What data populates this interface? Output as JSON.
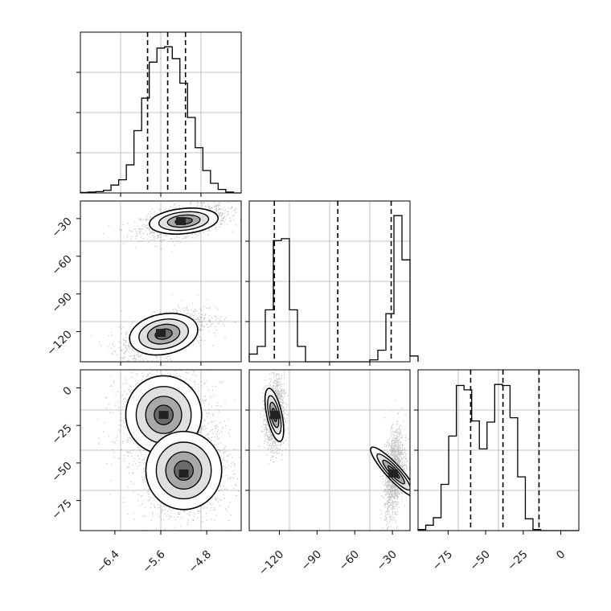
{
  "chart_data": {
    "type": "corner",
    "panels": [
      {
        "id": "hist-p1",
        "kind": "histogram",
        "row": 0,
        "col": 0,
        "xlim": [
          -7.0,
          -4.2
        ],
        "quantiles": [
          -5.83,
          -5.48,
          -5.17
        ],
        "bin_edges_start": -7.0,
        "bin_width": 0.1333,
        "counts": [
          0.2,
          0.4,
          0.6,
          1.2,
          3.6,
          6.0,
          12.8,
          28.4,
          43.2,
          59.6,
          66.0,
          66.6,
          61.2,
          50.0,
          34.4,
          20.6,
          10.2,
          4.4,
          1.6,
          0.4,
          0
        ]
      },
      {
        "id": "scatter-p1-p2",
        "kind": "density2d",
        "row": 1,
        "col": 0,
        "xlim": [
          -7.0,
          -4.2
        ],
        "ylim": [
          -144,
          -16
        ],
        "yticks": [
          -30,
          -60,
          -90,
          -120
        ],
        "modes": [
          {
            "cx": -5.2,
            "cy": -32,
            "sx": 0.3,
            "sy": 5,
            "corr": 0.45,
            "n": 1400,
            "dark": [
              -5.25,
              -32
            ]
          },
          {
            "cx": -5.55,
            "cy": -122,
            "sx": 0.3,
            "sy": 8,
            "corr": 0.55,
            "n": 1400,
            "dark": [
              -5.6,
              -121
            ]
          }
        ]
      },
      {
        "id": "hist-p2",
        "kind": "histogram",
        "row": 1,
        "col": 1,
        "xlim": [
          -144,
          -16
        ],
        "quantiles": [
          -124,
          -73.5,
          -31
        ],
        "bin_edges_start": -144,
        "bin_width": 6.4,
        "counts": [
          0.4,
          0.8,
          2.7,
          6.3,
          6.4,
          2.7,
          0.8,
          0,
          0,
          0,
          0,
          0,
          0,
          0,
          0,
          0.1,
          0.6,
          2.5,
          7.6,
          5.3,
          0.3
        ]
      },
      {
        "id": "scatter-p1-p3",
        "kind": "density2d",
        "row": 2,
        "col": 0,
        "xlim": [
          -7.0,
          -4.2
        ],
        "ylim": [
          -95,
          12
        ],
        "yticks": [
          0,
          -25,
          -50,
          -75
        ],
        "xticks": [
          -6.4,
          -5.6,
          -4.8
        ],
        "modes": [
          {
            "cx": -5.55,
            "cy": -18,
            "sx": 0.33,
            "sy": 13,
            "corr": 0.0,
            "n": 1400,
            "dark": [
              -5.55,
              -18
            ]
          },
          {
            "cx": -5.2,
            "cy": -55,
            "sx": 0.33,
            "sy": 13,
            "corr": 0.0,
            "n": 1400,
            "dark": [
              -5.2,
              -57
            ]
          }
        ]
      },
      {
        "id": "scatter-p2-p3",
        "kind": "density2d",
        "row": 2,
        "col": 1,
        "xlim": [
          -144,
          -16
        ],
        "ylim": [
          -95,
          12
        ],
        "xticks": [
          -120,
          -90,
          -60,
          -30
        ],
        "modes": [
          {
            "cx": -124,
            "cy": -18,
            "sx": 3.0,
            "sy": 9,
            "corr": 0.1,
            "n": 1400,
            "dark": [
              -123.5,
              -18
            ]
          },
          {
            "cx": -29,
            "cy": -56,
            "sx": 3.0,
            "sy": 11,
            "corr": 0.35,
            "n": 1400,
            "dark": [
              -29.5,
              -57
            ]
          }
        ]
      },
      {
        "id": "hist-p3",
        "kind": "histogram",
        "row": 2,
        "col": 2,
        "xlim": [
          -95,
          12
        ],
        "xticks": [
          -75,
          -50,
          -25,
          0
        ],
        "quantiles": [
          -60,
          -38.5,
          -14.5
        ],
        "bin_edges_start": -95,
        "bin_width": 5.1,
        "counts": [
          0.1,
          0.5,
          1.2,
          4.3,
          8.8,
          13.5,
          13.1,
          10.2,
          7.6,
          10.1,
          13.6,
          13.5,
          10.5,
          5.0,
          1.1,
          0.1,
          0,
          0,
          0,
          0,
          0
        ]
      }
    ],
    "grid": true
  }
}
